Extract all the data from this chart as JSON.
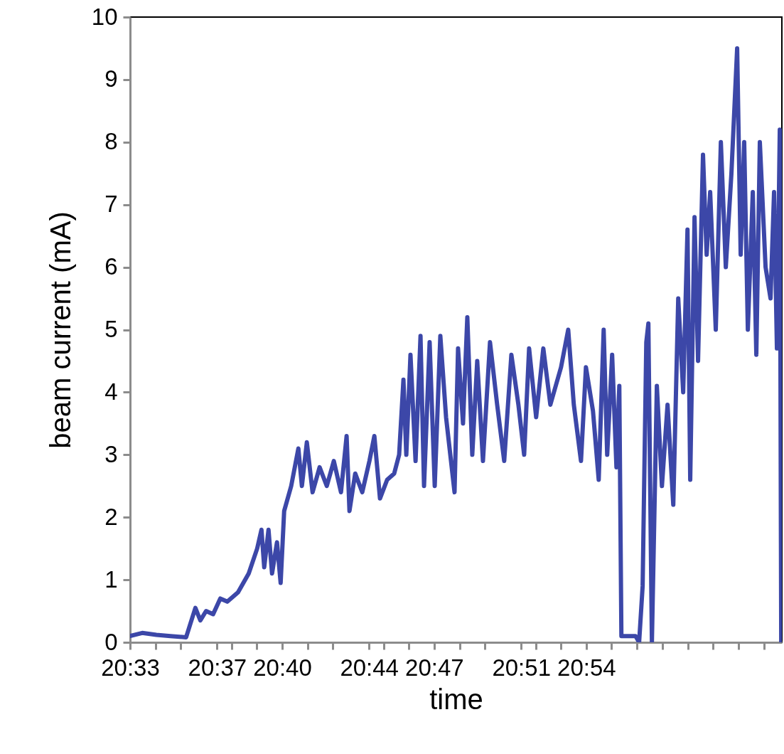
{
  "chart_data": {
    "type": "line",
    "xlabel": "time",
    "ylabel": "beam current (mA)",
    "xlim": [
      20.55,
      21.05
    ],
    "ylim": [
      0,
      10
    ],
    "yticks": [
      0,
      1,
      2,
      3,
      4,
      5,
      6,
      7,
      8,
      9,
      10
    ],
    "xticks": [
      {
        "value": 20.55,
        "label": "20:33"
      },
      {
        "value": 20.5694,
        "label": null
      },
      {
        "value": 20.5889,
        "label": null
      },
      {
        "value": 20.6167,
        "label": "20:37"
      },
      {
        "value": 20.6278,
        "label": null
      },
      {
        "value": 20.6472,
        "label": null
      },
      {
        "value": 20.6667,
        "label": "20:40"
      },
      {
        "value": 20.6861,
        "label": null
      },
      {
        "value": 20.7056,
        "label": null
      },
      {
        "value": 20.7333,
        "label": "20:44"
      },
      {
        "value": 20.7444,
        "label": null
      },
      {
        "value": 20.7639,
        "label": null
      },
      {
        "value": 20.7833,
        "label": "20:47"
      },
      {
        "value": 20.8028,
        "label": null
      },
      {
        "value": 20.8222,
        "label": null
      },
      {
        "value": 20.85,
        "label": "20:51"
      },
      {
        "value": 20.8611,
        "label": null
      },
      {
        "value": 20.8806,
        "label": null
      },
      {
        "value": 20.9,
        "label": "20:54"
      },
      {
        "value": 20.9194,
        "label": null
      },
      {
        "value": 20.9389,
        "label": null
      },
      {
        "value": 20.9583,
        "label": null
      },
      {
        "value": 20.9778,
        "label": null
      },
      {
        "value": 20.9972,
        "label": null
      },
      {
        "value": 21.0167,
        "label": null
      },
      {
        "value": 21.0361,
        "label": null
      }
    ],
    "grid": false,
    "marker": "none",
    "line_style": "solid",
    "x": [
      20.55,
      20.5593,
      20.5702,
      20.581,
      20.593,
      20.5963,
      20.6001,
      20.6039,
      20.6083,
      20.6137,
      20.6192,
      20.6246,
      20.6328,
      20.641,
      20.6475,
      20.6508,
      20.6529,
      20.6562,
      20.6589,
      20.6627,
      20.6655,
      20.6682,
      20.6736,
      20.6791,
      20.6818,
      20.6856,
      20.69,
      20.6954,
      20.7009,
      20.7063,
      20.7118,
      20.7161,
      20.7183,
      20.7227,
      20.7281,
      20.7336,
      20.7374,
      20.7417,
      20.7472,
      20.7526,
      20.7564,
      20.7597,
      20.7619,
      20.7651,
      20.769,
      20.7728,
      20.7755,
      20.7798,
      20.7837,
      20.788,
      20.7924,
      20.7989,
      20.8016,
      20.8054,
      20.8087,
      20.8125,
      20.8163,
      20.8207,
      20.8261,
      20.8316,
      20.837,
      20.8425,
      20.8479,
      20.8523,
      20.8561,
      20.8615,
      20.867,
      20.8724,
      20.8806,
      20.8861,
      20.8904,
      20.8959,
      20.8997,
      20.9051,
      20.9095,
      20.9133,
      20.916,
      20.9198,
      20.9231,
      20.9253,
      20.9269,
      20.9324,
      20.9378,
      20.9405,
      20.9432,
      20.946,
      20.9476,
      20.9503,
      20.9541,
      20.958,
      20.9623,
      20.9667,
      20.9705,
      20.9743,
      20.9776,
      20.9797,
      20.983,
      20.9857,
      20.9895,
      20.9923,
      20.995,
      20.9993,
      21.0032,
      21.007,
      21.0113,
      21.0157,
      21.0184,
      21.0211,
      21.0239,
      21.0277,
      21.0304,
      21.0331,
      21.0375,
      21.0413,
      21.044,
      21.0462,
      21.0484,
      21.0495
    ],
    "series": [
      {
        "color": "#3c47a8",
        "values": [
          0.1,
          0.15,
          0.12,
          0.1,
          0.08,
          0.3,
          0.55,
          0.35,
          0.5,
          0.45,
          0.7,
          0.65,
          0.8,
          1.1,
          1.5,
          1.8,
          1.2,
          1.8,
          1.1,
          1.6,
          0.95,
          2.1,
          2.5,
          3.1,
          2.5,
          3.2,
          2.4,
          2.8,
          2.5,
          2.9,
          2.4,
          3.3,
          2.1,
          2.7,
          2.4,
          2.9,
          3.3,
          2.3,
          2.6,
          2.7,
          3.0,
          4.2,
          3.0,
          4.6,
          2.9,
          4.9,
          2.5,
          4.8,
          2.5,
          4.9,
          3.6,
          2.4,
          4.7,
          3.5,
          5.2,
          3.0,
          4.5,
          2.9,
          4.8,
          3.8,
          2.9,
          4.6,
          3.8,
          3.0,
          4.7,
          3.6,
          4.7,
          3.8,
          4.4,
          5.0,
          3.8,
          2.9,
          4.4,
          3.7,
          2.6,
          5.0,
          3.0,
          4.6,
          2.8,
          4.1,
          0.1,
          0.1,
          0.1,
          0.0,
          0.9,
          4.8,
          5.1,
          0.0,
          4.1,
          2.5,
          3.8,
          2.2,
          5.5,
          4.0,
          6.6,
          2.6,
          6.8,
          4.5,
          7.8,
          6.2,
          7.2,
          5.0,
          8.0,
          6.0,
          7.5,
          9.5,
          6.2,
          8.0,
          5.0,
          7.2,
          4.6,
          8.0,
          6.0,
          5.5,
          7.2,
          4.7,
          8.2,
          0.0
        ]
      }
    ]
  }
}
